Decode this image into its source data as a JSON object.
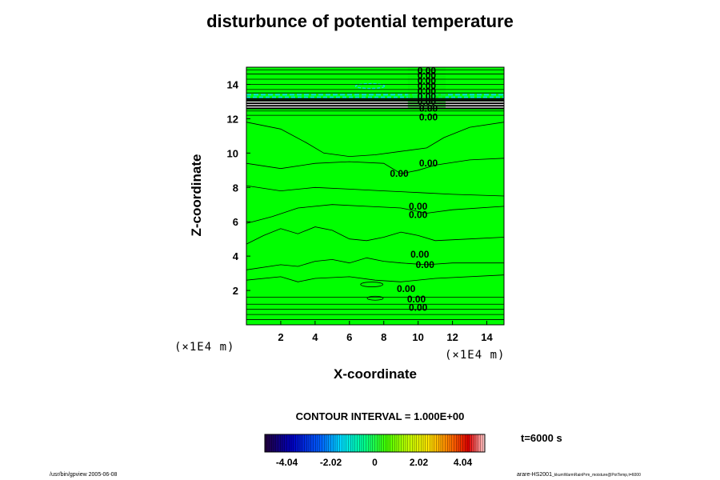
{
  "chart_data": {
    "type": "heatmap",
    "title": "disturbunce of potential temperature",
    "xlabel": "X-coordinate",
    "ylabel": "Z-coordinate",
    "x_unit": "(×1E4 m)",
    "y_unit": "(×1E4 m)",
    "xlim": [
      0,
      15
    ],
    "ylim": [
      0,
      15
    ],
    "x_ticks": [
      2,
      4,
      6,
      8,
      10,
      12,
      14
    ],
    "y_ticks": [
      2,
      4,
      6,
      8,
      10,
      12,
      14
    ],
    "contour_interval": "CONTOUR INTERVAL = 1.000E+00",
    "time_label": "t=6000 s",
    "colorbar": {
      "min": -5.05,
      "max": 5.05,
      "tick_values": [
        -4.04,
        -2.02,
        0,
        2.02,
        4.04
      ],
      "tick_labels": [
        "-4.04",
        "-2.02",
        "0",
        "2.02",
        "4.04"
      ]
    },
    "contour_labels": [
      {
        "text": "0.00",
        "x": 10.5,
        "z": 14.8
      },
      {
        "text": "0.00",
        "x": 10.5,
        "z": 14.5
      },
      {
        "text": "0.00",
        "x": 10.5,
        "z": 14.2
      },
      {
        "text": "0.00",
        "x": 10.5,
        "z": 13.9
      },
      {
        "text": "0.00",
        "x": 10.5,
        "z": 13.6
      },
      {
        "text": "0.00",
        "x": 10.5,
        "z": 13.3
      },
      {
        "text": "0.00",
        "x": 10.5,
        "z": 13.0
      },
      {
        "text": "0.00",
        "x": 10.6,
        "z": 12.6
      },
      {
        "text": "0.00",
        "x": 10.6,
        "z": 12.1
      },
      {
        "text": "0.00",
        "x": 10.6,
        "z": 9.4
      },
      {
        "text": "0.00",
        "x": 8.9,
        "z": 8.8
      },
      {
        "text": "0.00",
        "x": 10.0,
        "z": 6.9
      },
      {
        "text": "0.00",
        "x": 10.0,
        "z": 6.4
      },
      {
        "text": "0.00",
        "x": 10.1,
        "z": 4.1
      },
      {
        "text": "0.00",
        "x": 10.4,
        "z": 3.5
      },
      {
        "text": "0.00",
        "x": 9.3,
        "z": 2.1
      },
      {
        "text": "0.00",
        "x": 9.9,
        "z": 1.5
      },
      {
        "text": "0.00",
        "x": 10.0,
        "z": 1.0
      }
    ],
    "colors": {
      "field": "#00ff00",
      "positive_anomaly": "#ffffff",
      "negative_anomaly": "#00e0e0",
      "contour": "#000000"
    }
  },
  "footer": {
    "left": "/usr/bin/gpview 2005-06-08",
    "right_main": "arare-HS2001",
    "right_sub": "_kkumWarmRainPrm_moisture@PotTemp,t=6000"
  }
}
